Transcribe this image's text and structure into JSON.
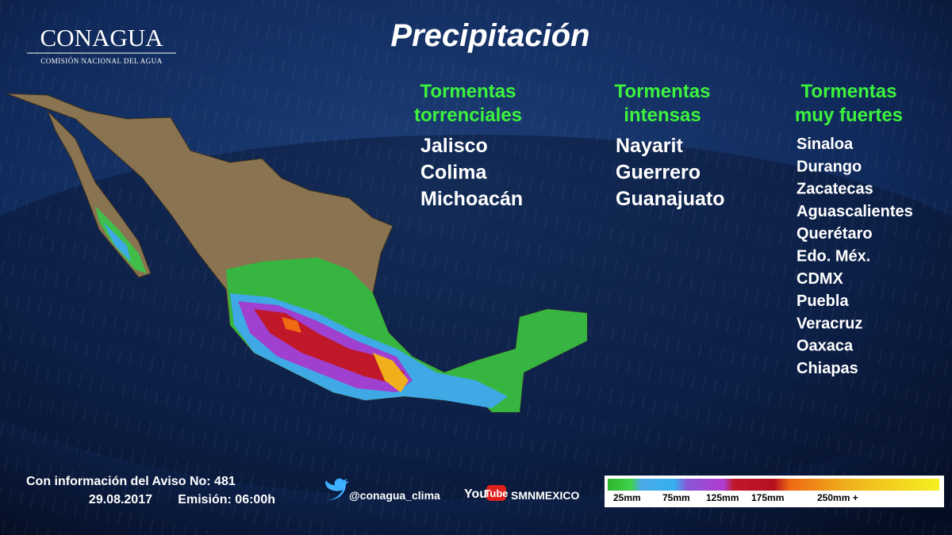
{
  "logo": {
    "name": "CONAGUA",
    "subtitle": "COMISIÓN NACIONAL DEL AGUA"
  },
  "title": "Precipitación",
  "columns": [
    {
      "heading": [
        "Tormentas",
        "torrenciales"
      ],
      "states": [
        "Jalisco",
        "Colima",
        "Michoacán"
      ]
    },
    {
      "heading": [
        "Tormentas",
        "intensas"
      ],
      "states": [
        "Nayarit",
        "Guerrero",
        "Guanajuato"
      ]
    },
    {
      "heading": [
        "Tormentas",
        "muy fuertes"
      ],
      "states": [
        "Sinaloa",
        "Durango",
        "Zacatecas",
        "Aguascalientes",
        "Querétaro",
        "Edo. Méx.",
        "CDMX",
        "Puebla",
        "Veracruz",
        "Oaxaca",
        "Chiapas"
      ]
    }
  ],
  "footer": {
    "notice": "Con información del Aviso No: 481",
    "date": "29.08.2017",
    "emission": "Emisión: 06:00h",
    "twitter": "@conagua_clima",
    "youtube_logo": [
      "You",
      "Tube"
    ],
    "youtube": "SMNMEXICO"
  },
  "legend": {
    "labels": [
      "25mm",
      "75mm",
      "125mm",
      "175mm",
      "250mm +"
    ]
  }
}
